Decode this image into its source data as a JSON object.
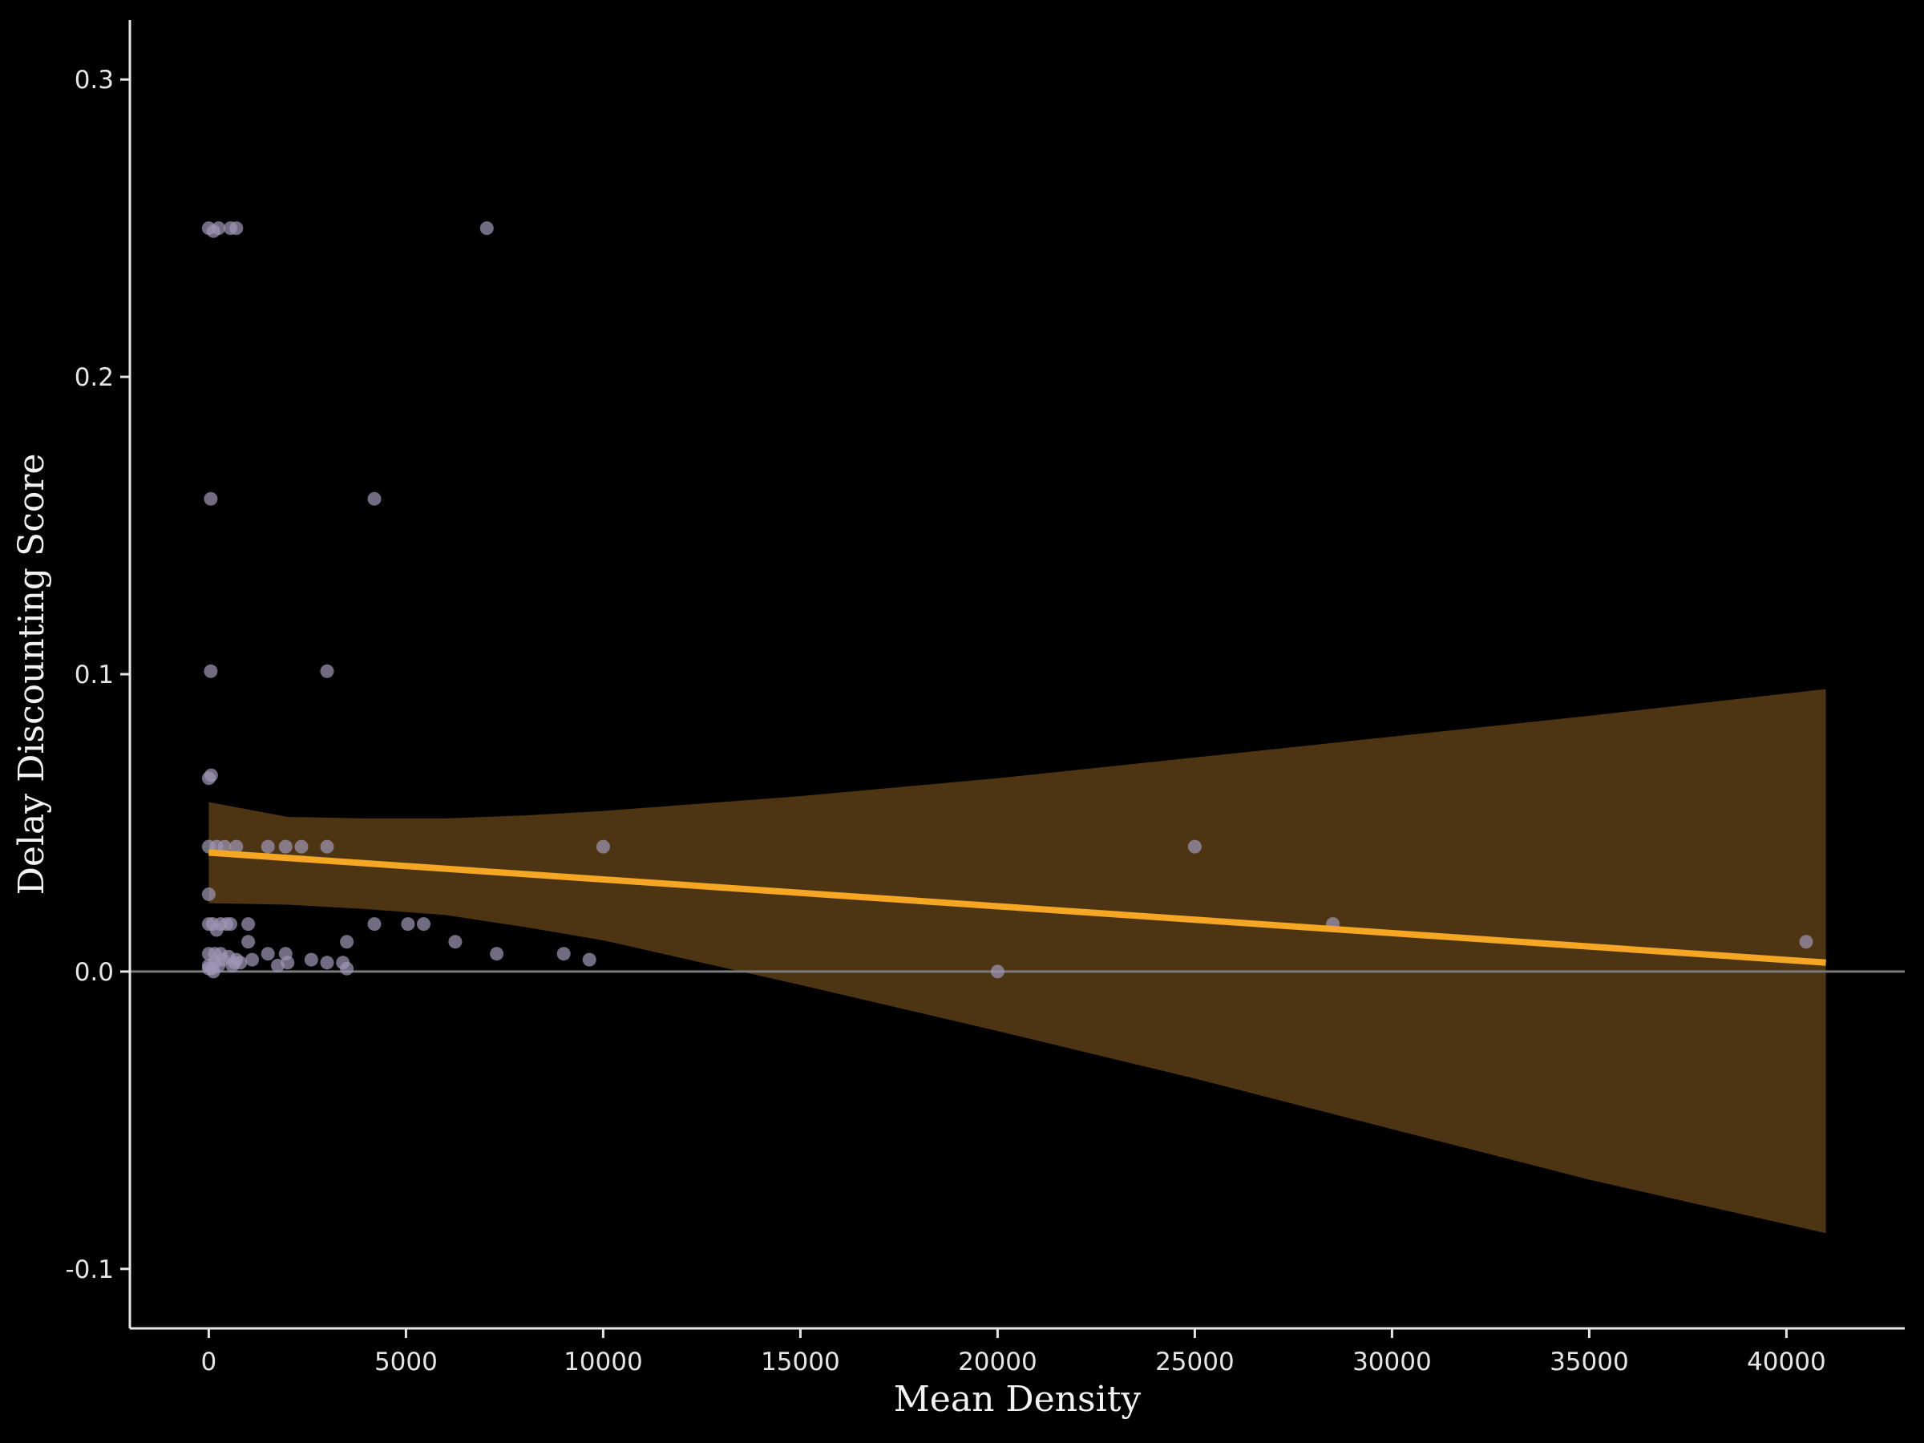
{
  "chart_data": {
    "type": "scatter",
    "xlabel": "Mean Density",
    "ylabel": "Delay Discounting Score",
    "xlim": [
      -2000,
      43000
    ],
    "ylim": [
      -0.12,
      0.32
    ],
    "x_ticks": [
      0,
      5000,
      10000,
      15000,
      20000,
      25000,
      30000,
      35000,
      40000
    ],
    "x_tick_labels": [
      "0",
      "5000",
      "10000",
      "15000",
      "20000",
      "25000",
      "30000",
      "35000",
      "40000"
    ],
    "y_ticks": [
      -0.1,
      0.0,
      0.1,
      0.2,
      0.3
    ],
    "y_tick_labels": [
      "-0.1",
      "0.0",
      "0.1",
      "0.2",
      "0.3"
    ],
    "grid": false,
    "reference_line_y": 0,
    "points": [
      [
        0,
        0.25
      ],
      [
        120,
        0.249
      ],
      [
        250,
        0.25
      ],
      [
        550,
        0.25
      ],
      [
        700,
        0.25
      ],
      [
        7050,
        0.25
      ],
      [
        50,
        0.159
      ],
      [
        4200,
        0.159
      ],
      [
        50,
        0.101
      ],
      [
        3000,
        0.101
      ],
      [
        0,
        0.065
      ],
      [
        60,
        0.066
      ],
      [
        0,
        0.042
      ],
      [
        200,
        0.042
      ],
      [
        400,
        0.042
      ],
      [
        700,
        0.042
      ],
      [
        1500,
        0.042
      ],
      [
        1950,
        0.042
      ],
      [
        2350,
        0.042
      ],
      [
        3000,
        0.042
      ],
      [
        10000,
        0.042
      ],
      [
        25000,
        0.042
      ],
      [
        0,
        0.026
      ],
      [
        0,
        0.016
      ],
      [
        100,
        0.016
      ],
      [
        200,
        0.014
      ],
      [
        300,
        0.016
      ],
      [
        450,
        0.016
      ],
      [
        550,
        0.016
      ],
      [
        1000,
        0.016
      ],
      [
        4200,
        0.016
      ],
      [
        5050,
        0.016
      ],
      [
        5450,
        0.016
      ],
      [
        28500,
        0.016
      ],
      [
        1000,
        0.01
      ],
      [
        3500,
        0.01
      ],
      [
        6250,
        0.01
      ],
      [
        40500,
        0.01
      ],
      [
        0,
        0.006
      ],
      [
        150,
        0.006
      ],
      [
        300,
        0.006
      ],
      [
        500,
        0.005
      ],
      [
        700,
        0.004
      ],
      [
        1100,
        0.004
      ],
      [
        1500,
        0.006
      ],
      [
        1950,
        0.006
      ],
      [
        2600,
        0.004
      ],
      [
        7300,
        0.006
      ],
      [
        9000,
        0.006
      ],
      [
        9650,
        0.004
      ],
      [
        0,
        0.002
      ],
      [
        80,
        0.001
      ],
      [
        150,
        0.003
      ],
      [
        250,
        0.002
      ],
      [
        350,
        0.004
      ],
      [
        600,
        0.002
      ],
      [
        650,
        0.003
      ],
      [
        800,
        0.003
      ],
      [
        1750,
        0.002
      ],
      [
        2000,
        0.003
      ],
      [
        3000,
        0.003
      ],
      [
        3400,
        0.003
      ],
      [
        3500,
        0.001
      ],
      [
        0,
        0.001
      ],
      [
        120,
        0.0
      ],
      [
        20000,
        0.0
      ]
    ],
    "regression_line": {
      "x": [
        0,
        41000
      ],
      "y": [
        0.04,
        0.003
      ]
    },
    "confidence_band": {
      "x": [
        0,
        2000,
        4000,
        6000,
        8000,
        10000,
        15000,
        20000,
        25000,
        30000,
        35000,
        41000
      ],
      "upper": [
        0.057,
        0.052,
        0.0515,
        0.0515,
        0.0525,
        0.054,
        0.059,
        0.065,
        0.072,
        0.079,
        0.086,
        0.095
      ],
      "lower": [
        0.023,
        0.0225,
        0.021,
        0.019,
        0.015,
        0.0105,
        -0.0045,
        -0.02,
        -0.036,
        -0.053,
        -0.07,
        -0.088
      ]
    },
    "colors": {
      "background": "#000000",
      "points": "#9c95b4",
      "regression_line": "#f5a623",
      "confidence_band": "#4d3412",
      "reference_line": "#7a7a7a",
      "axis": "#e6e6e6"
    }
  }
}
